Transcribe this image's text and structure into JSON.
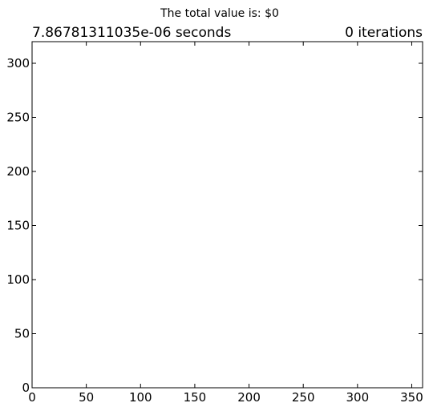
{
  "chart_data": {
    "type": "scatter",
    "title": "The total value is: $0",
    "subtitle_left": "7.86781311035e-06 seconds",
    "subtitle_right": "0 iterations",
    "xlabel": "",
    "ylabel": "",
    "xlim": [
      0,
      360
    ],
    "ylim": [
      0,
      320
    ],
    "xticks": [
      "0",
      "50",
      "100",
      "150",
      "200",
      "250",
      "300",
      "350"
    ],
    "yticks": [
      "0",
      "50",
      "100",
      "150",
      "200",
      "250",
      "300"
    ],
    "grid": false,
    "series": [],
    "colors": {
      "axes": "#000000",
      "background": "#ffffff"
    }
  }
}
